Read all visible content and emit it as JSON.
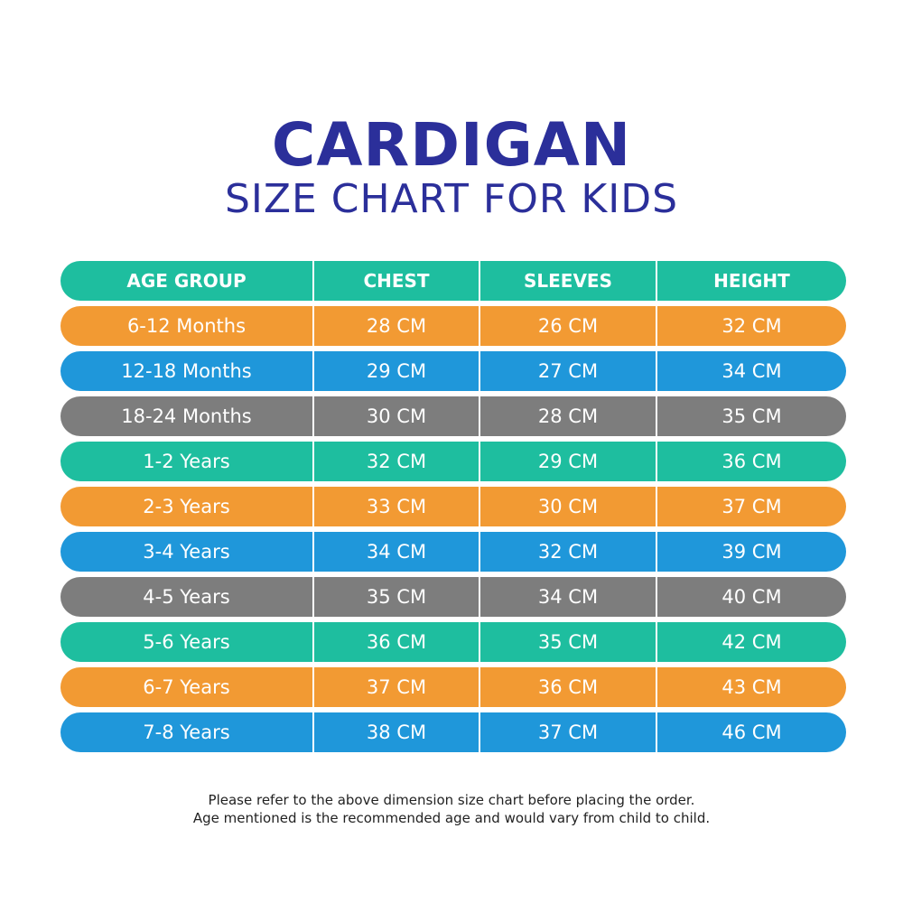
{
  "title": "CARDIGAN",
  "subtitle": "SIZE CHART FOR KIDS",
  "colors": {
    "title": "#2b2f9a",
    "teal": "#1ebe9f",
    "orange": "#f29a33",
    "blue": "#1f97da",
    "gray": "#7d7d7d"
  },
  "chart_data": {
    "type": "table",
    "columns": [
      "AGE GROUP",
      "CHEST",
      "SLEEVES",
      "HEIGHT"
    ],
    "header_color": "teal",
    "rows": [
      {
        "cells": [
          "6-12 Months",
          "28 CM",
          "26 CM",
          "32 CM"
        ],
        "color": "orange"
      },
      {
        "cells": [
          "12-18 Months",
          "29 CM",
          "27 CM",
          "34 CM"
        ],
        "color": "blue"
      },
      {
        "cells": [
          "18-24 Months",
          "30 CM",
          "28 CM",
          "35 CM"
        ],
        "color": "gray"
      },
      {
        "cells": [
          "1-2 Years",
          "32 CM",
          "29 CM",
          "36 CM"
        ],
        "color": "teal"
      },
      {
        "cells": [
          "2-3 Years",
          "33 CM",
          "30 CM",
          "37 CM"
        ],
        "color": "orange"
      },
      {
        "cells": [
          "3-4 Years",
          "34 CM",
          "32 CM",
          "39 CM"
        ],
        "color": "blue"
      },
      {
        "cells": [
          "4-5 Years",
          "35 CM",
          "34 CM",
          "40 CM"
        ],
        "color": "gray"
      },
      {
        "cells": [
          "5-6 Years",
          "36 CM",
          "35 CM",
          "42 CM"
        ],
        "color": "teal"
      },
      {
        "cells": [
          "6-7 Years",
          "37 CM",
          "36 CM",
          "43 CM"
        ],
        "color": "orange"
      },
      {
        "cells": [
          "7-8 Years",
          "38 CM",
          "37 CM",
          "46 CM"
        ],
        "color": "blue"
      }
    ]
  },
  "footnote": {
    "line1": "Please refer to the above dimension size chart before placing the order.",
    "line2": "Age mentioned is the recommended age and would vary from child to child."
  }
}
